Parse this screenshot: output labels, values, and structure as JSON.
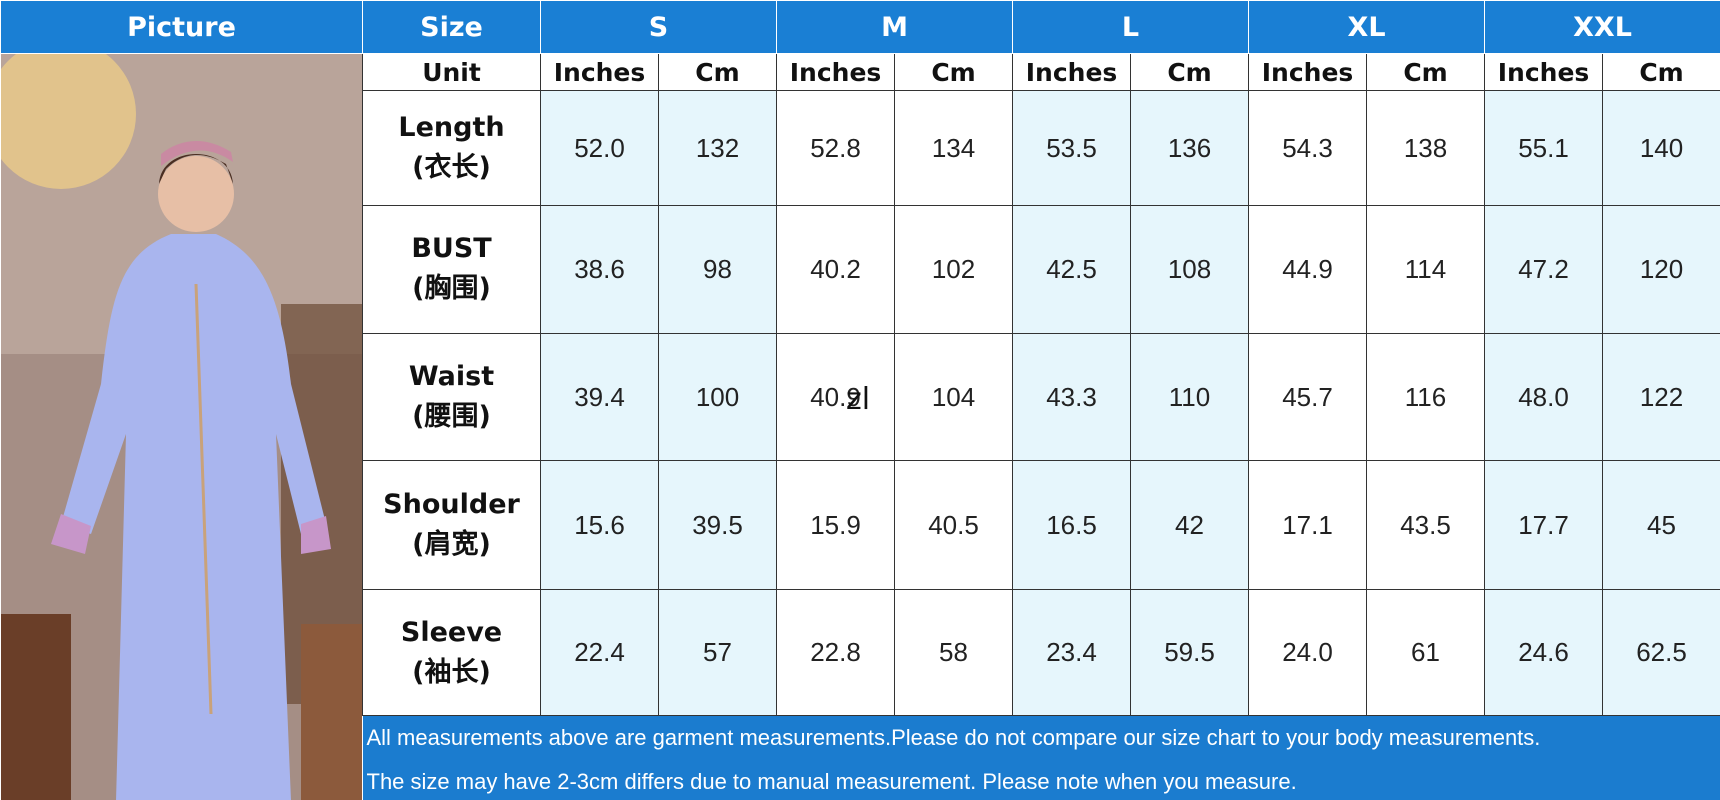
{
  "header": {
    "picture": "Picture",
    "size": "Size",
    "sizes": [
      "S",
      "M",
      "L",
      "XL",
      "XXL"
    ]
  },
  "unit_row": {
    "label": "Unit",
    "units": [
      "Inches",
      "Cm",
      "Inches",
      "Cm",
      "Inches",
      "Cm",
      "Inches",
      "Cm",
      "Inches",
      "Cm"
    ]
  },
  "rows": [
    {
      "label": "Length",
      "label_cn": "(衣长)",
      "values": [
        "52.0",
        "132",
        "52.8",
        "134",
        "53.5",
        "136",
        "54.3",
        "138",
        "55.1",
        "140"
      ]
    },
    {
      "label": "BUST",
      "label_cn": "(胸围)",
      "values": [
        "38.6",
        "98",
        "40.2",
        "102",
        "42.5",
        "108",
        "44.9",
        "114",
        "47.2",
        "120"
      ]
    },
    {
      "label": "Waist",
      "label_cn": "(腰围)",
      "values": [
        "39.4",
        "100",
        "40.9",
        "104",
        "43.3",
        "110",
        "45.7",
        "116",
        "48.0",
        "122"
      ]
    },
    {
      "label": "Shoulder",
      "label_cn": "(肩宽)",
      "values": [
        "15.6",
        "39.5",
        "15.9",
        "40.5",
        "16.5",
        "42",
        "17.1",
        "43.5",
        "17.7",
        "45"
      ]
    },
    {
      "label": "Sleeve",
      "label_cn": "(袖长)",
      "values": [
        "22.4",
        "57",
        "22.8",
        "58",
        "23.4",
        "59.5",
        "24.0",
        "61",
        "24.6",
        "62.5"
      ]
    }
  ],
  "stray_text": "zl",
  "notes": [
    "All measurements above are garment measurements.Please do not compare our size chart to your body measurements.",
    "The size may have 2-3cm differs due to manual measurement. Please note when you measure."
  ]
}
